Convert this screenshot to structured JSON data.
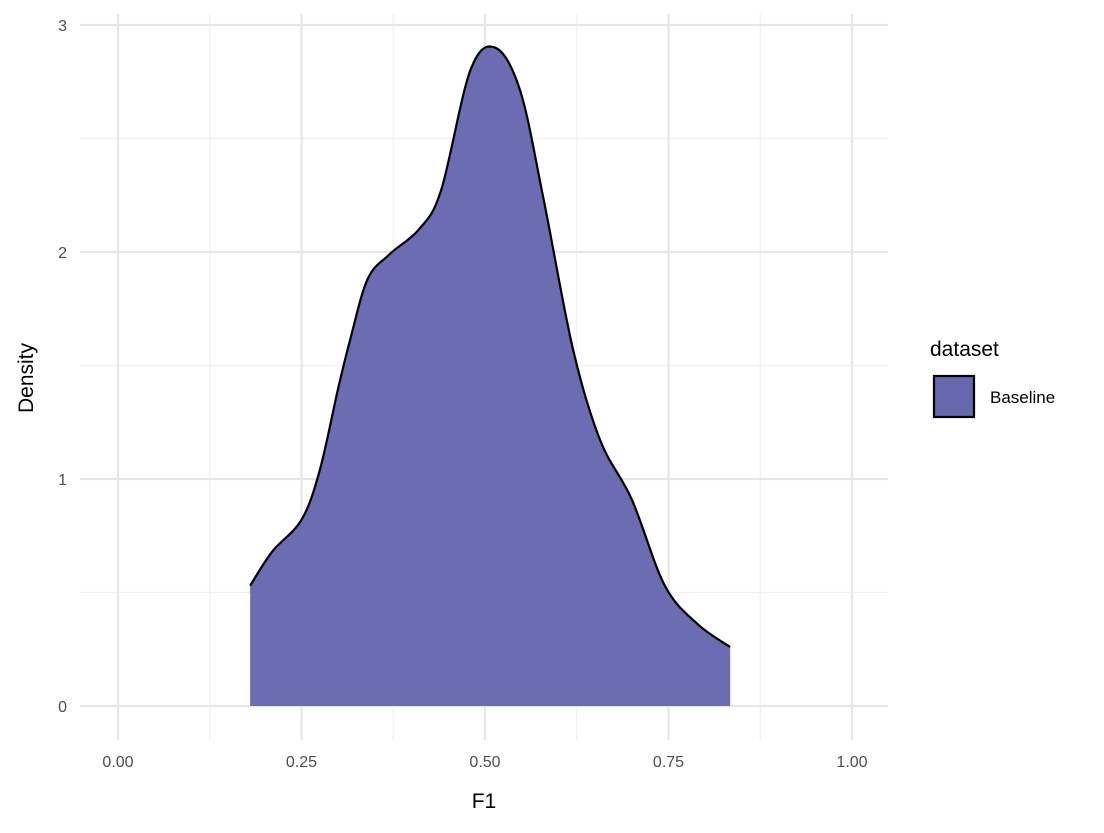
{
  "chart_data": {
    "type": "area",
    "subtype": "density",
    "title": "",
    "xlabel": "F1",
    "ylabel": "Density",
    "xlim": [
      -0.05,
      1.05
    ],
    "ylim": [
      0,
      3
    ],
    "x_ticks": [
      "0.00",
      "0.25",
      "0.50",
      "0.75",
      "1.00"
    ],
    "x_tick_values": [
      0,
      0.25,
      0.5,
      0.75,
      1
    ],
    "y_ticks": [
      "0",
      "1",
      "2",
      "3"
    ],
    "y_tick_values": [
      0,
      1,
      2,
      3
    ],
    "grid": true,
    "legend": {
      "title": "dataset",
      "position": "right",
      "entries": [
        "Baseline"
      ]
    },
    "series": [
      {
        "name": "Baseline",
        "color": "#6667ae",
        "outline": "#000000",
        "x": [
          0.18,
          0.21,
          0.25,
          0.275,
          0.3,
          0.316,
          0.34,
          0.37,
          0.41,
          0.44,
          0.48,
          0.514,
          0.548,
          0.58,
          0.62,
          0.657,
          0.7,
          0.745,
          0.79,
          0.834
        ],
        "y": [
          0.53,
          0.68,
          0.82,
          1.04,
          1.4,
          1.61,
          1.88,
          1.99,
          2.1,
          2.27,
          2.8,
          2.9,
          2.71,
          2.23,
          1.57,
          1.17,
          0.91,
          0.53,
          0.36,
          0.26
        ]
      }
    ]
  }
}
